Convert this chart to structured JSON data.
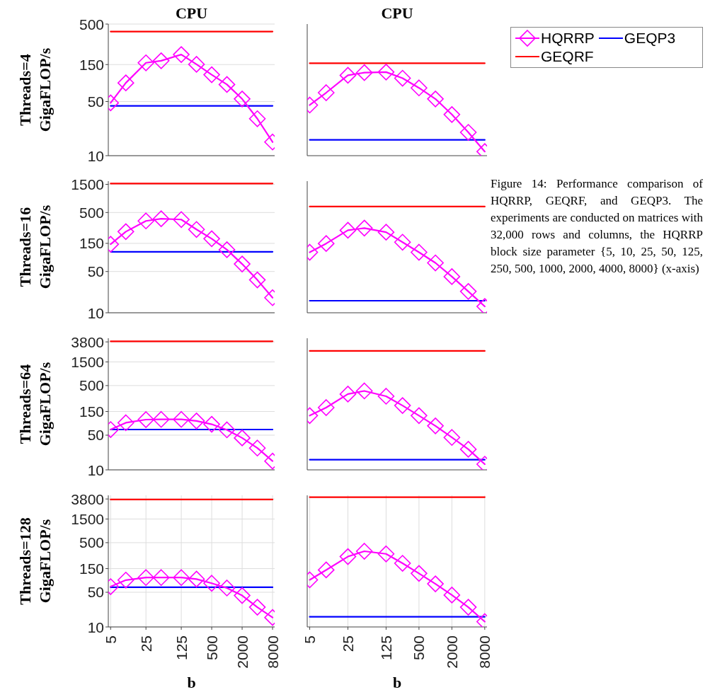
{
  "chart_data": [
    {
      "type": "line",
      "title": "CPU",
      "ylabel": "Threads=4\nGigaFLOP/s",
      "x": [
        5,
        10,
        25,
        50,
        125,
        250,
        500,
        1000,
        2000,
        4000,
        8000
      ],
      "log": "xy",
      "xlim": [
        4.5,
        8800
      ],
      "xticks": [
        5,
        25,
        125,
        500,
        2000,
        8000
      ],
      "ylim": [
        10,
        500
      ],
      "yticks": [
        10,
        50,
        150,
        500
      ],
      "grid": true,
      "tick_labels": "y",
      "series": [
        {
          "color": "#ff00ff",
          "marker": "diamond",
          "values": [
            48,
            87,
            158,
            168,
            202,
            151,
            111,
            83,
            54,
            30,
            15
          ]
        },
        {
          "color": "#0000ff",
          "marker": "none",
          "values": [
            44,
            44,
            44,
            44,
            44,
            44,
            44,
            44,
            44,
            44,
            44
          ]
        },
        {
          "color": "#ff0000",
          "marker": "none",
          "values": [
            400,
            400,
            400,
            400,
            400,
            400,
            400,
            400,
            400,
            400,
            400
          ]
        }
      ]
    },
    {
      "type": "line",
      "title": "CPU",
      "x": [
        5,
        10,
        25,
        50,
        125,
        250,
        500,
        1000,
        2000,
        4000,
        8000
      ],
      "log": "xy",
      "xlim": [
        4.5,
        8800
      ],
      "xticks": [
        5,
        25,
        125,
        500,
        2000,
        8000
      ],
      "ylim": [
        10,
        500
      ],
      "yticks": [
        10,
        50,
        150,
        500
      ],
      "grid": true,
      "tick_labels": false,
      "legend": "right",
      "series": [
        {
          "name": "HQRRP",
          "color": "#ff00ff",
          "marker": "diamond",
          "values": [
            45,
            65,
            109,
            118,
            120,
            100,
            75,
            54,
            34,
            20,
            11.3
          ]
        },
        {
          "name": "GEQP3",
          "color": "#0000ff",
          "marker": "none",
          "values": [
            16,
            16,
            16,
            16,
            16,
            16,
            16,
            16,
            16,
            16,
            16
          ]
        },
        {
          "name": "GEQRF",
          "color": "#ff0000",
          "marker": "none",
          "values": [
            156,
            156,
            156,
            156,
            156,
            156,
            156,
            156,
            156,
            156,
            156
          ]
        }
      ]
    },
    {
      "type": "line",
      "ylabel": "Threads=16\nGigaFLOP/s",
      "x": [
        5,
        10,
        25,
        50,
        125,
        250,
        500,
        1000,
        2000,
        4000,
        8000
      ],
      "log": "xy",
      "xlim": [
        4.5,
        8800
      ],
      "xticks": [
        5,
        25,
        125,
        500,
        2000,
        8000
      ],
      "ylim": [
        10,
        1700
      ],
      "yticks": [
        10,
        50,
        150,
        500,
        1500
      ],
      "grid": true,
      "tick_labels": "y",
      "series": [
        {
          "color": "#ff00ff",
          "marker": "diamond",
          "values": [
            145,
            237,
            360,
            392,
            380,
            258,
            180,
            117,
            67,
            36,
            18
          ]
        },
        {
          "color": "#0000ff",
          "marker": "none",
          "values": [
            108,
            108,
            108,
            108,
            108,
            108,
            108,
            108,
            108,
            108,
            108
          ]
        },
        {
          "color": "#ff0000",
          "marker": "none",
          "values": [
            1550,
            1550,
            1550,
            1550,
            1550,
            1550,
            1550,
            1550,
            1550,
            1550,
            1550
          ]
        }
      ]
    },
    {
      "type": "line",
      "x": [
        5,
        10,
        25,
        50,
        125,
        250,
        500,
        1000,
        2000,
        4000,
        8000
      ],
      "log": "xy",
      "xlim": [
        4.5,
        8800
      ],
      "xticks": [
        5,
        25,
        125,
        500,
        2000,
        8000
      ],
      "ylim": [
        10,
        1700
      ],
      "yticks": [
        10,
        50,
        150,
        500,
        1500
      ],
      "grid": true,
      "tick_labels": false,
      "annotations": [
        "Figure 14: Performance comparison of HQRRP, GEQRF, and GEQP3. The experiments are conducted on matrices with 32,000 rows and columns, the HQRRP block size parameter {5, 10, 25, 50, 125, 250, 500, 1000, 2000, 4000, 8000} (x-axis)"
      ],
      "series": [
        {
          "color": "#ff00ff",
          "marker": "diamond",
          "values": [
            106,
            149,
            250,
            272,
            232,
            157,
            106,
            70,
            41,
            23,
            12.8
          ]
        },
        {
          "color": "#0000ff",
          "marker": "none",
          "values": [
            16,
            16,
            16,
            16,
            16,
            16,
            16,
            16,
            16,
            16,
            16
          ]
        },
        {
          "color": "#ff0000",
          "marker": "none",
          "values": [
            630,
            630,
            630,
            630,
            630,
            630,
            630,
            630,
            630,
            630,
            630
          ]
        }
      ]
    },
    {
      "type": "line",
      "ylabel": "Threads=64\nGigaFLOP/s",
      "x": [
        5,
        10,
        25,
        50,
        125,
        250,
        500,
        1000,
        2000,
        4000,
        8000
      ],
      "log": "xy",
      "xlim": [
        4.5,
        8800
      ],
      "xticks": [
        5,
        25,
        125,
        500,
        2000,
        8000
      ],
      "ylim": [
        10,
        4500
      ],
      "yticks": [
        10,
        50,
        150,
        500,
        1500,
        3800
      ],
      "grid": true,
      "tick_labels": "y",
      "series": [
        {
          "color": "#ff00ff",
          "marker": "diamond",
          "values": [
            65,
            89,
            103,
            104,
            104,
            97,
            83,
            64,
            44,
            27.5,
            15
          ]
        },
        {
          "color": "#0000ff",
          "marker": "none",
          "values": [
            65,
            65,
            65,
            65,
            65,
            65,
            65,
            65,
            65,
            65,
            65
          ]
        },
        {
          "color": "#ff0000",
          "marker": "none",
          "values": [
            3900,
            3900,
            3900,
            3900,
            3900,
            3900,
            3900,
            3900,
            3900,
            3900,
            3900
          ]
        }
      ]
    },
    {
      "type": "line",
      "x": [
        5,
        10,
        25,
        50,
        125,
        250,
        500,
        1000,
        2000,
        4000,
        8000
      ],
      "log": "xy",
      "xlim": [
        4.5,
        8800
      ],
      "xticks": [
        5,
        25,
        125,
        500,
        2000,
        8000
      ],
      "ylim": [
        10,
        4500
      ],
      "yticks": [
        10,
        50,
        150,
        500,
        1500,
        3800
      ],
      "grid": true,
      "tick_labels": false,
      "series": [
        {
          "color": "#ff00ff",
          "marker": "diamond",
          "values": [
            124,
            180,
            337,
            390,
            305,
            198,
            124,
            77,
            45,
            26,
            13
          ]
        },
        {
          "color": "#0000ff",
          "marker": "none",
          "values": [
            16,
            16,
            16,
            16,
            16,
            16,
            16,
            16,
            16,
            16,
            16
          ]
        },
        {
          "color": "#ff0000",
          "marker": "none",
          "values": [
            2500,
            2500,
            2500,
            2500,
            2500,
            2500,
            2500,
            2500,
            2500,
            2500,
            2500
          ]
        }
      ]
    },
    {
      "type": "line",
      "ylabel": "Threads=128\nGigaFLOP/s",
      "xlabel": "b",
      "x": [
        5,
        10,
        25,
        50,
        125,
        250,
        500,
        1000,
        2000,
        4000,
        8000
      ],
      "log": "xy",
      "xlim": [
        4.5,
        8800
      ],
      "xticks": [
        5,
        25,
        125,
        500,
        2000,
        8000
      ],
      "ylim": [
        10,
        4500
      ],
      "yticks": [
        10,
        50,
        150,
        500,
        1500,
        3800
      ],
      "grid": true,
      "series": [
        {
          "color": "#ff00ff",
          "marker": "diamond",
          "values": [
            65,
            88,
            99,
            99,
            99,
            92,
            76,
            61,
            43,
            25,
            15.5
          ]
        },
        {
          "color": "#0000ff",
          "marker": "none",
          "values": [
            63,
            63,
            63,
            63,
            63,
            63,
            63,
            63,
            63,
            63,
            63
          ]
        },
        {
          "color": "#ff0000",
          "marker": "none",
          "values": [
            3700,
            3700,
            3700,
            3700,
            3700,
            3700,
            3700,
            3700,
            3700,
            3700,
            3700
          ]
        }
      ]
    },
    {
      "type": "line",
      "xlabel": "b",
      "x": [
        5,
        10,
        25,
        50,
        125,
        250,
        500,
        1000,
        2000,
        4000,
        8000
      ],
      "log": "xy",
      "xlim": [
        4.5,
        8800
      ],
      "xticks": [
        5,
        25,
        125,
        500,
        2000,
        8000
      ],
      "ylim": [
        10,
        4500
      ],
      "yticks": [
        10,
        50,
        150,
        500,
        1500,
        3800
      ],
      "grid": true,
      "tick_labels": "x",
      "series": [
        {
          "color": "#ff00ff",
          "marker": "diamond",
          "values": [
            89,
            141,
            262,
            336,
            297,
            192,
            120,
            74,
            44,
            25,
            12.8
          ]
        },
        {
          "color": "#0000ff",
          "marker": "none",
          "values": [
            16,
            16,
            16,
            16,
            16,
            16,
            16,
            16,
            16,
            16,
            16
          ]
        },
        {
          "color": "#ff0000",
          "marker": "none",
          "values": [
            4130,
            4130,
            4130,
            4130,
            4130,
            4130,
            4130,
            4130,
            4130,
            4130,
            4130
          ]
        }
      ]
    }
  ]
}
